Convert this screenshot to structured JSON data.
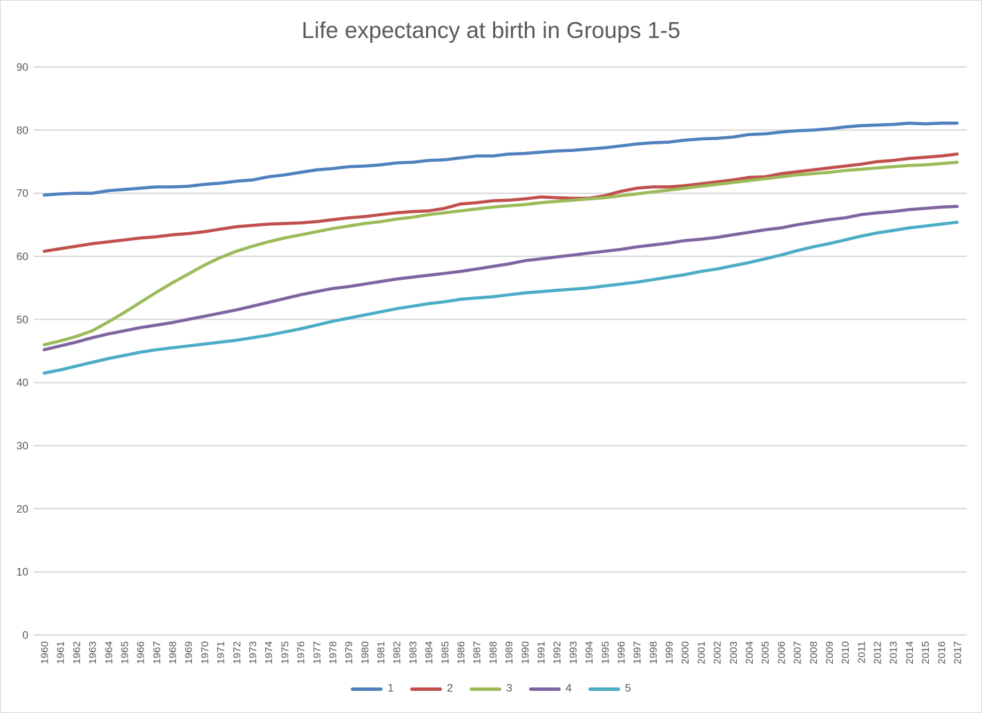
{
  "window": {
    "title": "Life expectancy at birth in Groups 1-5"
  },
  "chart_data": {
    "type": "line",
    "title": "Life expectancy at birth in Groups 1-5",
    "xlabel": "",
    "ylabel": "",
    "grid": true,
    "legend_position": "bottom",
    "ylim": [
      0,
      90
    ],
    "yticks": [
      0,
      10,
      20,
      30,
      40,
      50,
      60,
      70,
      80,
      90
    ],
    "colors": {
      "text": "#595959",
      "gridline": "#D9D9D9",
      "border": "#D9D9D9",
      "background": "#FFFFFF"
    },
    "x": [
      "1960",
      "1961",
      "1962",
      "1963",
      "1964",
      "1965",
      "1966",
      "1967",
      "1968",
      "1969",
      "1970",
      "1971",
      "1972",
      "1973",
      "1974",
      "1975",
      "1976",
      "1977",
      "1978",
      "1979",
      "1980",
      "1981",
      "1982",
      "1983",
      "1984",
      "1985",
      "1986",
      "1987",
      "1988",
      "1989",
      "1990",
      "1991",
      "1992",
      "1993",
      "1994",
      "1995",
      "1996",
      "1997",
      "1998",
      "1999",
      "2000",
      "2001",
      "2002",
      "2003",
      "2004",
      "2005",
      "2006",
      "2007",
      "2008",
      "2009",
      "2010",
      "2011",
      "2012",
      "2013",
      "2014",
      "2015",
      "2016",
      "2017"
    ],
    "series": [
      {
        "name": "1",
        "color": "#4F81BD",
        "values": [
          69.7,
          69.9,
          70.0,
          70.0,
          70.4,
          70.6,
          70.8,
          71.0,
          71.0,
          71.1,
          71.4,
          71.6,
          71.9,
          72.1,
          72.6,
          72.9,
          73.3,
          73.7,
          73.9,
          74.2,
          74.3,
          74.5,
          74.8,
          74.9,
          75.2,
          75.3,
          75.6,
          75.9,
          75.9,
          76.2,
          76.3,
          76.5,
          76.7,
          76.8,
          77.0,
          77.2,
          77.5,
          77.8,
          78.0,
          78.1,
          78.4,
          78.6,
          78.7,
          78.9,
          79.3,
          79.4,
          79.7,
          79.9,
          80.0,
          80.2,
          80.5,
          80.7,
          80.8,
          80.9,
          81.1,
          81.0,
          81.1,
          81.1
        ]
      },
      {
        "name": "2",
        "color": "#C0504D",
        "values": [
          60.8,
          61.2,
          61.6,
          62.0,
          62.3,
          62.6,
          62.9,
          63.1,
          63.4,
          63.6,
          63.9,
          64.3,
          64.7,
          64.9,
          65.1,
          65.2,
          65.3,
          65.5,
          65.8,
          66.1,
          66.3,
          66.6,
          66.9,
          67.1,
          67.2,
          67.6,
          68.3,
          68.5,
          68.8,
          68.9,
          69.1,
          69.4,
          69.3,
          69.2,
          69.2,
          69.6,
          70.3,
          70.8,
          71.0,
          71.0,
          71.2,
          71.5,
          71.8,
          72.1,
          72.5,
          72.6,
          73.1,
          73.4,
          73.7,
          74.0,
          74.3,
          74.6,
          75.0,
          75.2,
          75.5,
          75.7,
          75.9,
          76.2
        ]
      },
      {
        "name": "3",
        "color": "#9BBB59",
        "values": [
          46.0,
          46.6,
          47.3,
          48.2,
          49.6,
          51.1,
          52.7,
          54.3,
          55.8,
          57.2,
          58.6,
          59.8,
          60.8,
          61.6,
          62.3,
          62.9,
          63.4,
          63.9,
          64.4,
          64.8,
          65.2,
          65.5,
          65.9,
          66.2,
          66.6,
          66.9,
          67.2,
          67.5,
          67.8,
          68.0,
          68.2,
          68.5,
          68.7,
          68.9,
          69.1,
          69.3,
          69.6,
          69.9,
          70.2,
          70.5,
          70.8,
          71.1,
          71.4,
          71.7,
          72.0,
          72.3,
          72.6,
          72.9,
          73.1,
          73.3,
          73.6,
          73.8,
          74.0,
          74.2,
          74.4,
          74.5,
          74.7,
          74.9
        ]
      },
      {
        "name": "4",
        "color": "#8064A2",
        "values": [
          45.2,
          45.8,
          46.4,
          47.1,
          47.7,
          48.2,
          48.7,
          49.1,
          49.5,
          50.0,
          50.5,
          51.0,
          51.5,
          52.1,
          52.7,
          53.3,
          53.9,
          54.4,
          54.9,
          55.2,
          55.6,
          56.0,
          56.4,
          56.7,
          57.0,
          57.3,
          57.6,
          58.0,
          58.4,
          58.8,
          59.3,
          59.6,
          59.9,
          60.2,
          60.5,
          60.8,
          61.1,
          61.5,
          61.8,
          62.1,
          62.5,
          62.7,
          63.0,
          63.4,
          63.8,
          64.2,
          64.5,
          65.0,
          65.4,
          65.8,
          66.1,
          66.6,
          66.9,
          67.1,
          67.4,
          67.6,
          67.8,
          67.9
        ]
      },
      {
        "name": "5",
        "color": "#4BACC6",
        "values": [
          41.5,
          42.0,
          42.6,
          43.2,
          43.8,
          44.3,
          44.8,
          45.2,
          45.5,
          45.8,
          46.1,
          46.4,
          46.7,
          47.1,
          47.5,
          48.0,
          48.5,
          49.1,
          49.7,
          50.2,
          50.7,
          51.2,
          51.7,
          52.1,
          52.5,
          52.8,
          53.2,
          53.4,
          53.6,
          53.9,
          54.2,
          54.4,
          54.6,
          54.8,
          55.0,
          55.3,
          55.6,
          55.9,
          56.3,
          56.7,
          57.1,
          57.6,
          58.0,
          58.5,
          59.0,
          59.6,
          60.2,
          60.9,
          61.5,
          62.0,
          62.6,
          63.2,
          63.7,
          64.1,
          64.5,
          64.8,
          65.1,
          65.4
        ]
      }
    ]
  }
}
